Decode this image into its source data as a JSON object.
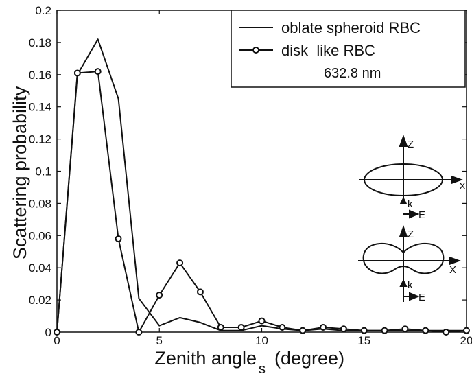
{
  "chart_data": {
    "type": "line",
    "xlabel": "Zenith angle",
    "xlabel_subscript": "s",
    "xlabel_unit": "(degree)",
    "ylabel": "Scattering probability",
    "xlim": [
      0,
      20
    ],
    "ylim": [
      0,
      0.2
    ],
    "x_ticks": [
      0,
      5,
      10,
      15,
      20
    ],
    "y_ticks": [
      0,
      0.02,
      0.04,
      0.06,
      0.08,
      0.1,
      0.12,
      0.14,
      0.16,
      0.18,
      0.2
    ],
    "grid": false,
    "legend_position": "top-right",
    "annotation": "632.8 nm",
    "series": [
      {
        "name": "oblate spheroid RBC",
        "marker": "none",
        "x": [
          0,
          1,
          2,
          3,
          4,
          5,
          6,
          7,
          8,
          9,
          10,
          11,
          12,
          13,
          14,
          15,
          16,
          17,
          18,
          19,
          20
        ],
        "y": [
          0,
          0.16,
          0.182,
          0.145,
          0.021,
          0.004,
          0.009,
          0.006,
          0.001,
          0.001,
          0.004,
          0.002,
          0.001,
          0.002,
          0.001,
          0.001,
          0.001,
          0.001,
          0.001,
          0.001,
          0.001
        ]
      },
      {
        "name": "disk  like RBC",
        "marker": "circle",
        "x": [
          0,
          1,
          2,
          3,
          4,
          5,
          6,
          7,
          8,
          9,
          10,
          11,
          12,
          13,
          14,
          15,
          16,
          17,
          18,
          19,
          20
        ],
        "y": [
          0,
          0.161,
          0.162,
          0.058,
          0,
          0.023,
          0.043,
          0.025,
          0.003,
          0.003,
          0.007,
          0.003,
          0.001,
          0.003,
          0.002,
          0.001,
          0.001,
          0.002,
          0.001,
          0,
          0.001
        ]
      }
    ],
    "insets": [
      {
        "shape": "oblate-spheroid",
        "axis_z": "Z",
        "axis_x": "X",
        "wave_k": "k",
        "field_e": "E"
      },
      {
        "shape": "biconcave-disk",
        "axis_z": "Z",
        "axis_x": "X",
        "wave_k": "k",
        "field_e": "E"
      }
    ],
    "colors": {
      "line": "#111111",
      "marker_fill": "#ffffff"
    }
  }
}
